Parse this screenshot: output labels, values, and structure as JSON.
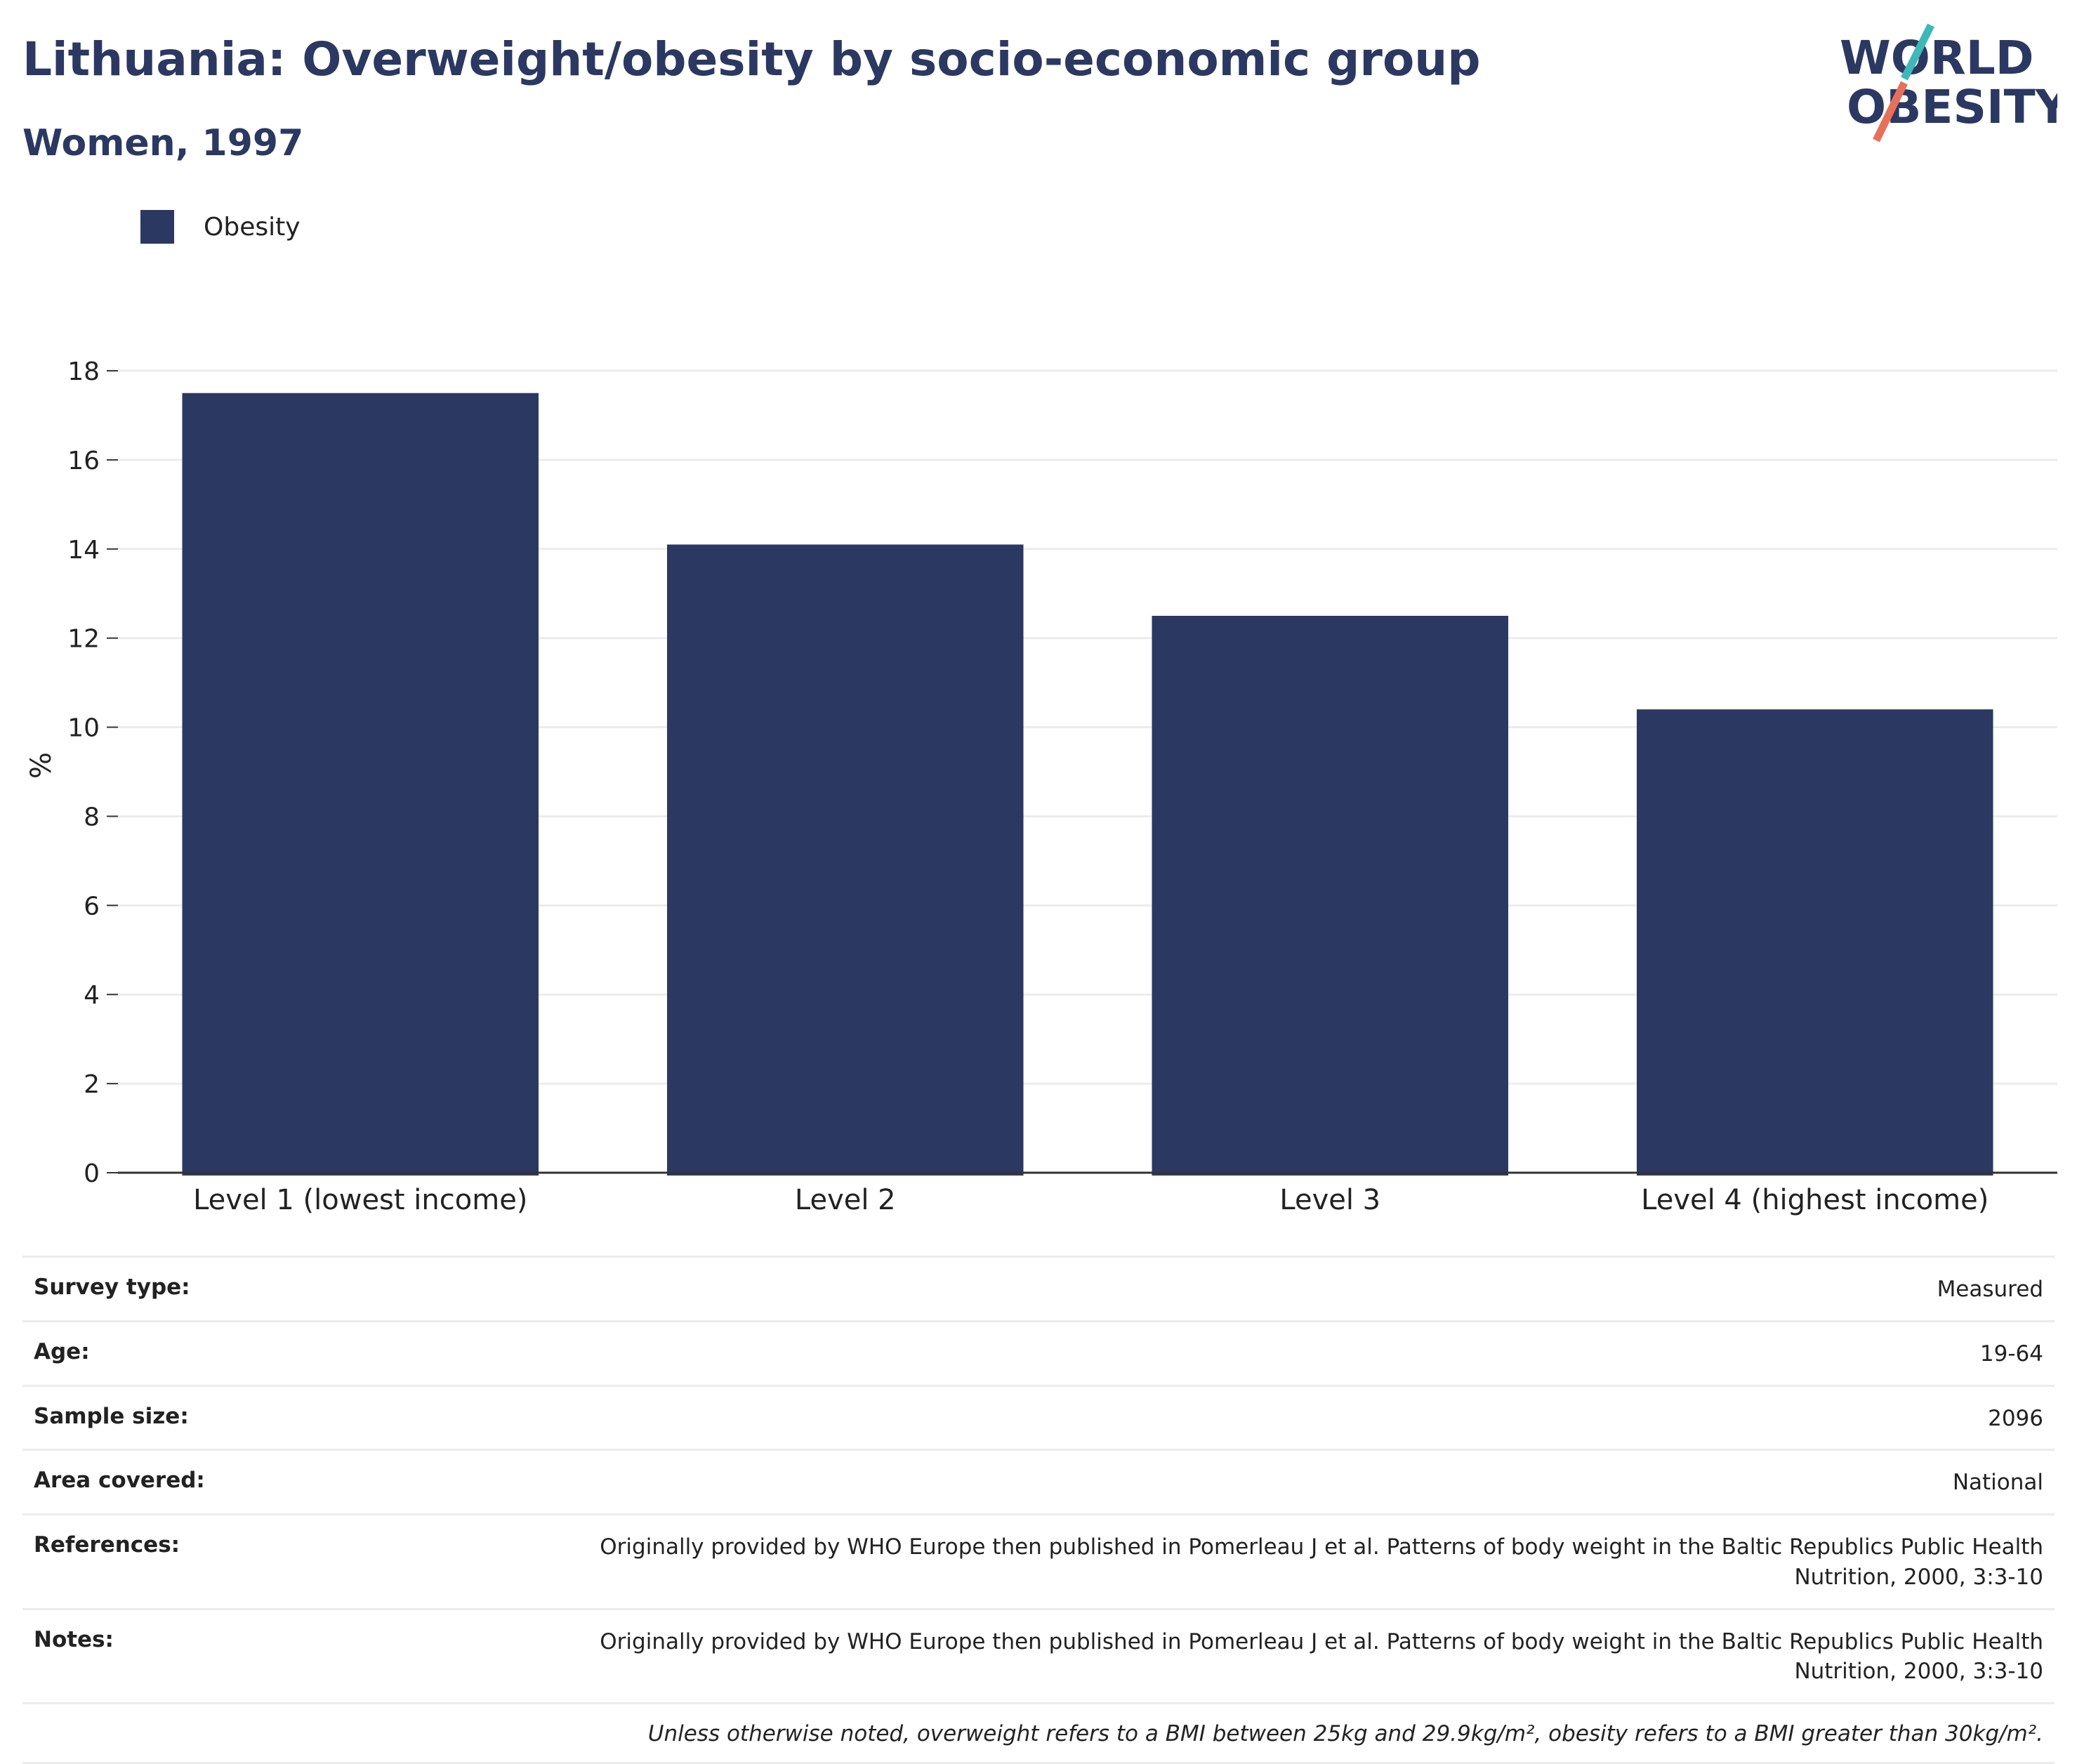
{
  "header": {
    "title": "Lithuania: Overweight/obesity by socio-economic group",
    "subtitle": "Women, 1997"
  },
  "logo": {
    "line1": "WORLD",
    "line2": "OBESITY",
    "colors": {
      "text": "#2b3862",
      "accent_teal": "#3fb8b8",
      "accent_coral": "#e8705a"
    }
  },
  "chart_data": {
    "type": "bar",
    "title": "Lithuania: Overweight/obesity by socio-economic group",
    "subtitle": "Women, 1997",
    "categories": [
      "Level 1 (lowest income)",
      "Level 2",
      "Level 3",
      "Level 4 (highest income)"
    ],
    "series": [
      {
        "name": "Obesity",
        "values": [
          17.5,
          14.1,
          12.5,
          10.4
        ],
        "color": "#2b3862"
      }
    ],
    "ylabel": "%",
    "xlabel": "",
    "ylim": [
      0,
      18
    ],
    "yticks": [
      0,
      2,
      4,
      6,
      8,
      10,
      12,
      14,
      16,
      18
    ],
    "grid": true,
    "legend": "top-left"
  },
  "info": {
    "rows": [
      {
        "label": "Survey type:",
        "value": "Measured"
      },
      {
        "label": "Age:",
        "value": "19-64"
      },
      {
        "label": "Sample size:",
        "value": "2096"
      },
      {
        "label": "Area covered:",
        "value": "National"
      },
      {
        "label": "References:",
        "value": "Originally provided by WHO Europe then published in Pomerleau J et al. Patterns of body weight in the Baltic Republics Public Health Nutrition, 2000, 3:3-10"
      },
      {
        "label": "Notes:",
        "value": "Originally provided by WHO Europe then published in Pomerleau J et al. Patterns of body weight in the Baltic Republics Public Health Nutrition, 2000, 3:3-10"
      }
    ],
    "footnote": "Unless otherwise noted, overweight refers to a BMI between 25kg and 29.9kg/m², obesity refers to a BMI greater than 30kg/m²."
  }
}
